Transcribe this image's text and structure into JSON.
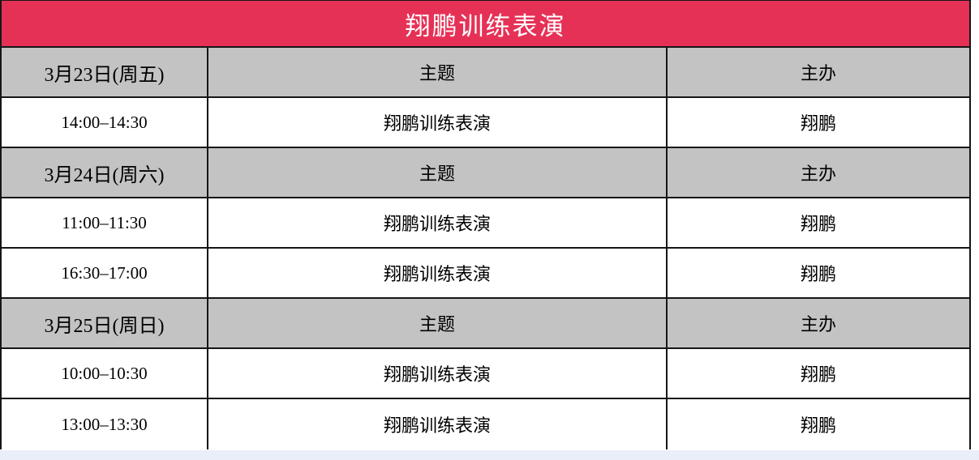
{
  "colors": {
    "accent_red": "#e63156",
    "header_gray": "#c3c3c3",
    "border_color": "#161616",
    "bottom_strip": "#e9eef8",
    "title_text": "#ffffff",
    "body_text": "#000000"
  },
  "table": {
    "title": "翔鹏训练表演",
    "sections": [
      {
        "date": "3月23日(周五)",
        "theme_header": "主题",
        "organizer_header": "主办",
        "rows": [
          {
            "time": "14:00–14:30",
            "theme": "翔鹏训练表演",
            "organizer": "翔鹏"
          }
        ]
      },
      {
        "date": "3月24日(周六)",
        "theme_header": "主题",
        "organizer_header": "主办",
        "rows": [
          {
            "time": "11:00–11:30",
            "theme": "翔鹏训练表演",
            "organizer": "翔鹏"
          },
          {
            "time": "16:30–17:00",
            "theme": "翔鹏训练表演",
            "organizer": "翔鹏"
          }
        ]
      },
      {
        "date": "3月25日(周日)",
        "theme_header": "主题",
        "organizer_header": "主办",
        "rows": [
          {
            "time": "10:00–10:30",
            "theme": "翔鹏训练表演",
            "organizer": "翔鹏"
          },
          {
            "time": "13:00–13:30",
            "theme": "翔鹏训练表演",
            "organizer": "翔鹏"
          }
        ]
      }
    ]
  }
}
